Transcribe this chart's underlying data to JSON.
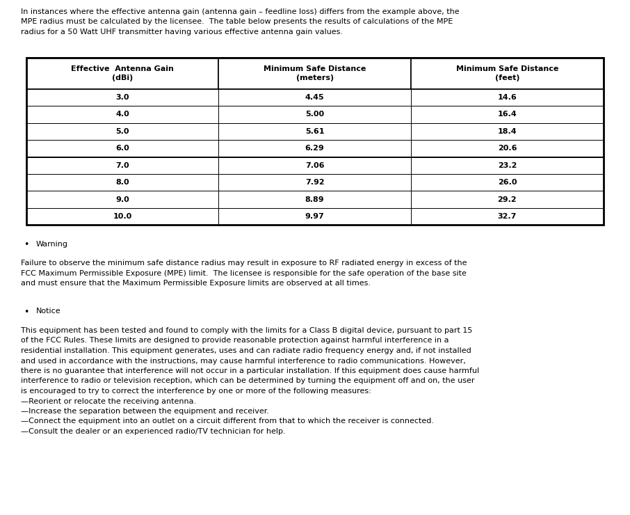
{
  "intro_text": "In instances where the effective antenna gain (antenna gain – feedline loss) differs from the example above, the MPE radius must be calculated by the licensee.  The table below presents the results of calculations of the MPE radius for a 50 Watt UHF transmitter having various effective antenna gain values.",
  "table_headers": [
    "Effective  Antenna Gain\n(dBi)",
    "Minimum Safe Distance\n(meters)",
    "Minimum Safe Distance\n(feet)"
  ],
  "table_data": [
    [
      "3.0",
      "4.45",
      "14.6"
    ],
    [
      "4.0",
      "5.00",
      "16.4"
    ],
    [
      "5.0",
      "5.61",
      "18.4"
    ],
    [
      "6.0",
      "6.29",
      "20.6"
    ],
    [
      "7.0",
      "7.06",
      "23.2"
    ],
    [
      "8.0",
      "7.92",
      "26.0"
    ],
    [
      "9.0",
      "8.89",
      "29.2"
    ],
    [
      "10.0",
      "9.97",
      "32.7"
    ]
  ],
  "bullet_warning_header": "Warning",
  "warning_text": "Failure to observe the minimum safe distance radius may result in exposure to RF radiated energy in excess of the FCC Maximum Permissible Exposure (MPE) limit.  The licensee is responsible for the safe operation of the base site and must ensure that the Maximum Permissible Exposure limits are observed at all times.",
  "bullet_notice_header": "Notice",
  "notice_text": "This equipment has been tested and found to comply with the limits for a Class B digital device, pursuant to part 15 of the FCC Rules. These limits are designed to provide reasonable protection against harmful interference in a residential installation. This equipment generates, uses and can radiate radio frequency energy and, if not installed and used in accordance with the instructions, may cause harmful interference to radio communications. However, there is no guarantee that interference will not occur in a particular installation. If this equipment does cause harmful interference to radio or television reception, which can be determined by turning the equipment off and on, the user is encouraged to try to correct the interference by one or more of the following measures:",
  "dash_items": [
    "—Reorient or relocate the receiving antenna.",
    "—Increase the separation between the equipment and receiver.",
    "—Connect the equipment into an outlet on a circuit different from that to which the receiver is connected.",
    "—Consult the dealer or an experienced radio/TV technician for help."
  ],
  "bg_color": "#ffffff",
  "text_color": "#000000",
  "fig_width": 9.06,
  "fig_height": 7.4,
  "dpi": 100
}
